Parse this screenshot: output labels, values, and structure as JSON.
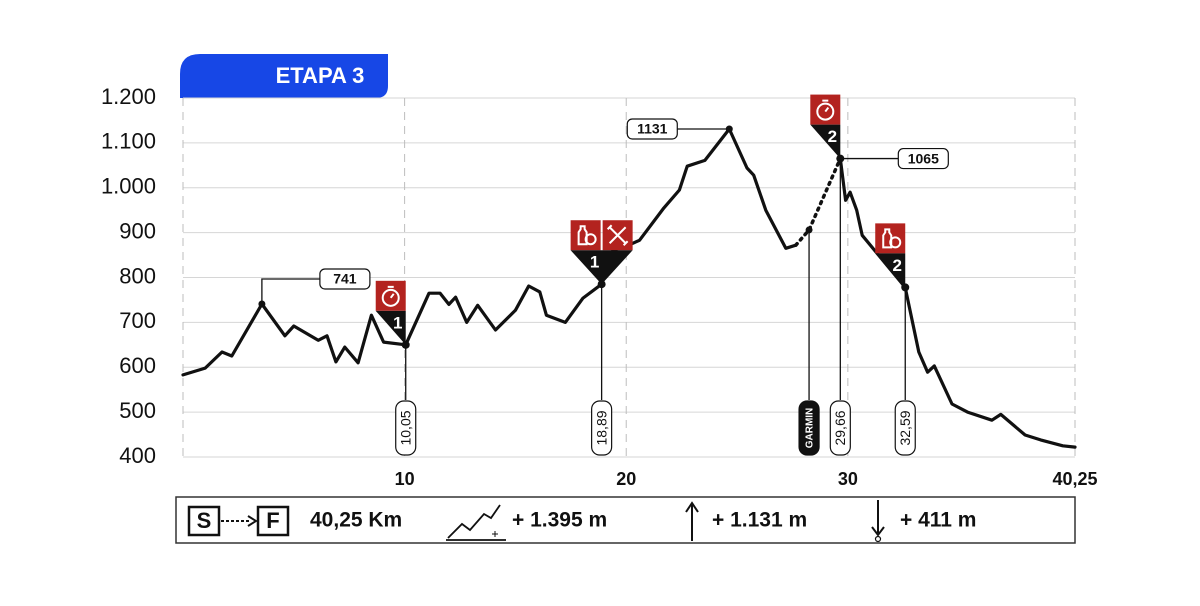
{
  "chart_data": {
    "type": "line",
    "title": "ETAPA 3",
    "xlim": [
      0,
      40.25
    ],
    "ylim": [
      400,
      1200
    ],
    "xticks": [
      10,
      20,
      30,
      {
        "value": 40.25,
        "label": "40,25"
      }
    ],
    "yticks": [
      400,
      500,
      600,
      700,
      800,
      900,
      {
        "value": 1000,
        "label": "1.000"
      },
      {
        "value": 1100,
        "label": "1.100"
      },
      {
        "value": 1200,
        "label": "1.200"
      }
    ],
    "grid": true,
    "series": [
      {
        "color": "#111111",
        "style": "solid",
        "x": [
          0,
          1.0,
          1.76,
          2.2,
          3.56,
          4.6,
          5.0,
          6.1,
          6.5,
          6.9,
          7.3,
          7.9,
          8.5,
          9.05,
          10.05,
          11.1,
          11.6,
          12.0,
          12.3,
          12.8,
          13.3,
          14.1,
          15.0,
          15.6,
          16.1,
          16.4,
          17.25,
          18.05,
          18.89,
          19.4,
          20.1,
          20.6,
          21.7,
          22.4,
          22.75,
          23.55,
          24.65,
          25.45,
          25.75,
          26.3,
          27.2,
          27.65,
          28.25,
          29.66,
          29.9,
          30.1,
          30.4,
          30.65,
          32.59,
          33.2,
          33.6,
          33.9,
          34.7,
          35.4,
          36.5,
          36.9,
          38.0,
          38.7,
          39.7,
          40.25
        ],
        "values": [
          583,
          598,
          634,
          625,
          741,
          670,
          692,
          660,
          670,
          612,
          645,
          610,
          716,
          656,
          650,
          765,
          765,
          740,
          756,
          700,
          738,
          683,
          727,
          781,
          768,
          716,
          700,
          754,
          785,
          861,
          872,
          883,
          955,
          995,
          1048,
          1061,
          1131,
          1044,
          1028,
          950,
          865,
          872,
          null,
          1065,
          972,
          990,
          950,
          894,
          778,
          634,
          589,
          603,
          518,
          500,
          482,
          495,
          449,
          438,
          425,
          422
        ]
      },
      {
        "color": "#111111",
        "style": "dotted",
        "x": [
          27.65,
          28.25,
          29.66
        ],
        "values": [
          872,
          906,
          1065
        ]
      }
    ],
    "markers": [
      {
        "x": 10.05,
        "y": 650,
        "label": "10,05",
        "badge": "1",
        "icons": [
          "timer"
        ]
      },
      {
        "x": 18.89,
        "y": 785,
        "label": "18,89",
        "badge": "1",
        "icons": [
          "food",
          "tools"
        ]
      },
      {
        "x": 29.66,
        "y": 1065,
        "label": "29,66",
        "badge": "2",
        "icons": [
          "timer"
        ]
      },
      {
        "x": 32.59,
        "y": 778,
        "label": "32,59",
        "badge": "2",
        "icons": [
          "food"
        ]
      }
    ],
    "garmin": {
      "x": 28.25,
      "y": 906,
      "label": "GARMIN"
    },
    "peaks": [
      {
        "x": 3.56,
        "value": 741,
        "side": "right"
      },
      {
        "x": 24.65,
        "value": 1131,
        "side": "left"
      },
      {
        "x": 29.66,
        "value": 1065,
        "side": "right"
      }
    ],
    "summary": {
      "start": "S",
      "finish": "F",
      "distance": "40,25 Km",
      "total_climb": "+ 1.395 m",
      "max_altitude": "+ 1.131 m",
      "min_altitude": "+ 411 m"
    }
  }
}
